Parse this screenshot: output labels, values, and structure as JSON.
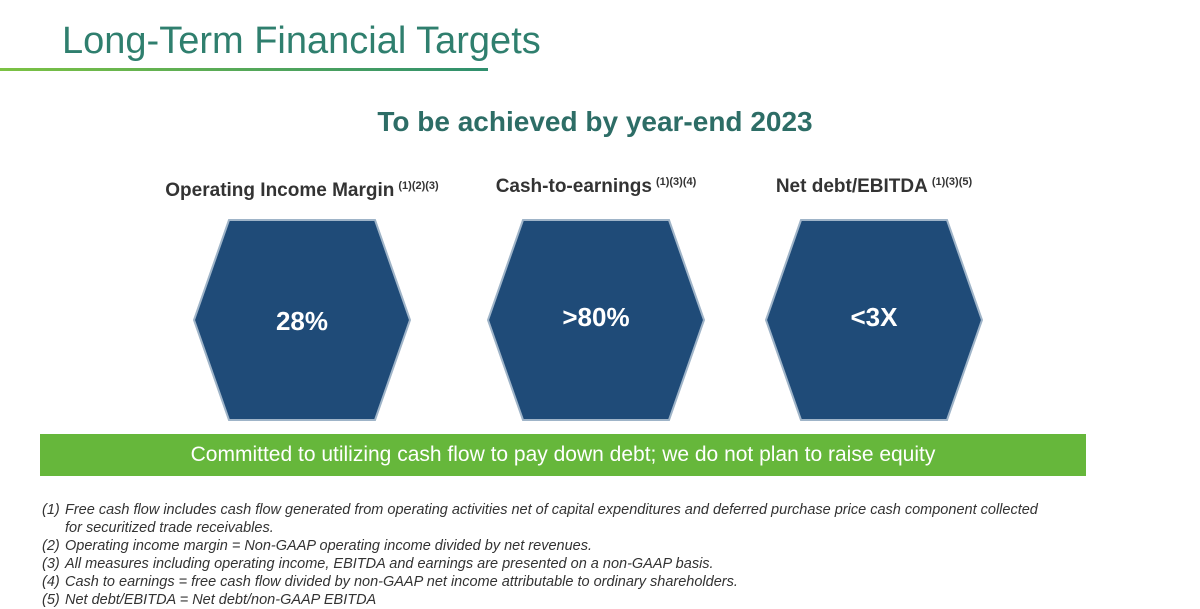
{
  "header": {
    "title": "Long-Term Financial Targets",
    "subtitle": "To be achieved by year-end 2023"
  },
  "targets": [
    {
      "label": "Operating Income Margin",
      "note": "(1)(2)(3)",
      "value": "28%"
    },
    {
      "label": "Cash-to-earnings",
      "note": "(1)(3)(4)",
      "value": ">80%"
    },
    {
      "label": "Net debt/EBITDA",
      "note": "(1)(3)(5)",
      "value": "<3X"
    }
  ],
  "banner": "Committed to utilizing cash flow to pay down debt; we do not plan to raise equity",
  "footnotes": [
    {
      "marker": "(1)",
      "text": "Free cash flow includes cash flow generated from operating activities net of capital expenditures and deferred purchase price cash component collected for securitized trade receivables."
    },
    {
      "marker": "(2)",
      "text": "Operating income margin = Non-GAAP operating income divided by net revenues."
    },
    {
      "marker": "(3)",
      "text": "All measures including operating income, EBITDA and earnings are presented on a non-GAAP basis."
    },
    {
      "marker": "(4)",
      "text": "Cash to earnings = free cash flow divided by non-GAAP net income attributable to ordinary shareholders."
    },
    {
      "marker": "(5)",
      "text": "Net debt/EBITDA = Net debt/non-GAAP EBITDA"
    }
  ]
}
